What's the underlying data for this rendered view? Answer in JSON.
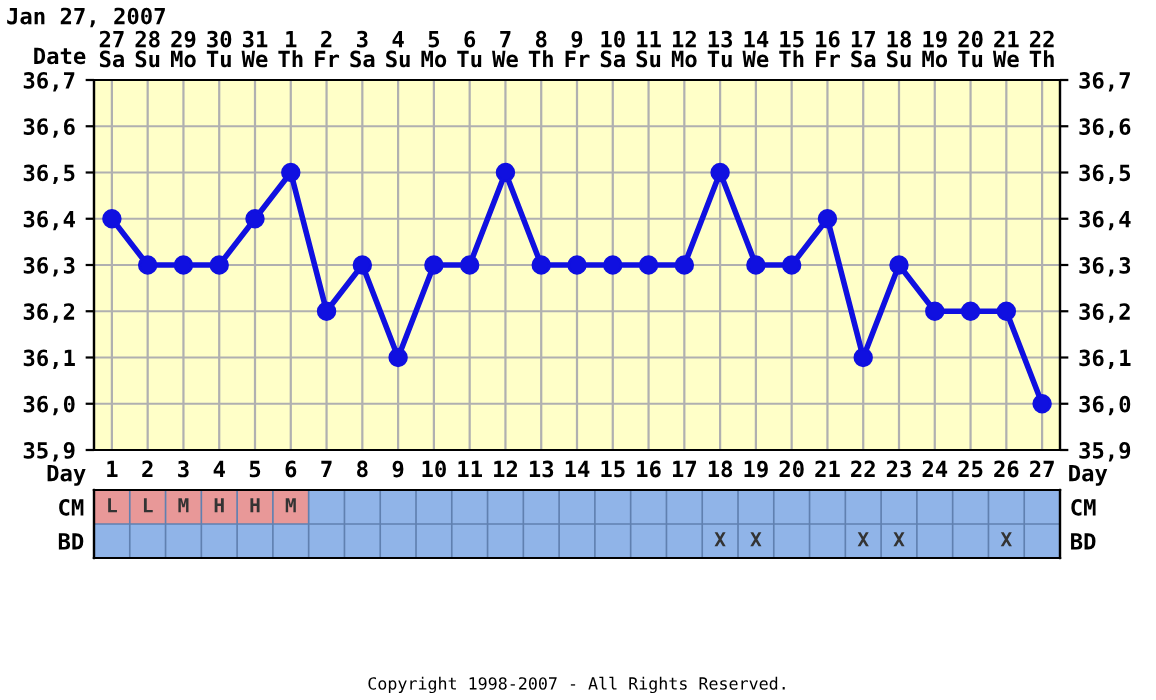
{
  "chart_data": [
    {
      "type": "line",
      "title": "Jan 27, 2007",
      "xlabel": "Date",
      "categories": [
        "27\nSa",
        "28\nSu",
        "29\nMo",
        "30\nTu",
        "31\nWe",
        "1\nTh",
        "2\nFr",
        "3\nSa",
        "4\nSu",
        "5\nMo",
        "6\nTu",
        "7\nWe",
        "8\nTh",
        "9\nFr",
        "10\nSa",
        "11\nSu",
        "12\nMo",
        "13\nTu",
        "14\nWe",
        "15\nTh",
        "16\nFr",
        "17\nSa",
        "18\nSu",
        "19\nMo",
        "20\nTu",
        "21\nWe",
        "22\nTh"
      ],
      "series": [
        {
          "color": "#1010e0",
          "values": [
            36.4,
            36.3,
            36.3,
            36.3,
            36.4,
            36.5,
            36.2,
            36.3,
            36.1,
            36.3,
            36.3,
            36.5,
            36.3,
            36.3,
            36.3,
            36.3,
            36.3,
            36.5,
            36.3,
            36.3,
            36.4,
            36.1,
            36.3,
            36.2,
            36.2,
            36.2,
            36.0
          ]
        }
      ],
      "marker": "circle",
      "line_style": "solid",
      "grid": true,
      "ylim": [
        35.9,
        36.7
      ],
      "yticks": [
        {
          "value": 35.9,
          "label": "35,9"
        },
        {
          "value": 36.0,
          "label": "36,0"
        },
        {
          "value": 36.1,
          "label": "36,1"
        },
        {
          "value": 36.2,
          "label": "36,2"
        },
        {
          "value": 36.3,
          "label": "36,3"
        },
        {
          "value": 36.4,
          "label": "36,4"
        },
        {
          "value": 36.5,
          "label": "36,5"
        },
        {
          "value": 36.6,
          "label": "36,6"
        },
        {
          "value": 36.7,
          "label": "36,7"
        }
      ],
      "y2lim": [
        35.9,
        36.7
      ],
      "y2ticks": [
        {
          "value": 35.9,
          "label": "35,9"
        },
        {
          "value": 36.0,
          "label": "36,0"
        },
        {
          "value": 36.1,
          "label": "36,1"
        },
        {
          "value": 36.2,
          "label": "36,2"
        },
        {
          "value": 36.3,
          "label": "36,3"
        },
        {
          "value": 36.4,
          "label": "36,4"
        },
        {
          "value": 36.5,
          "label": "36,5"
        },
        {
          "value": 36.6,
          "label": "36,6"
        },
        {
          "value": 36.7,
          "label": "36,7"
        }
      ]
    },
    {
      "type": "heatmap",
      "xlabel": "Day",
      "categories": [
        "1",
        "2",
        "3",
        "4",
        "5",
        "6",
        "7",
        "8",
        "9",
        "10",
        "11",
        "12",
        "13",
        "14",
        "15",
        "16",
        "17",
        "18",
        "19",
        "20",
        "21",
        "22",
        "23",
        "24",
        "25",
        "26",
        "27"
      ],
      "y_categories": [
        "CM",
        "BD"
      ],
      "y2_categories": [
        "CM",
        "BD"
      ],
      "cells": [
        [
          null,
          null,
          null,
          null,
          null,
          null,
          null,
          null,
          null,
          null,
          null,
          null,
          null,
          null,
          null,
          null,
          null,
          null,
          null,
          null,
          null,
          null,
          null,
          null,
          null,
          null,
          null
        ],
        [
          null,
          null,
          null,
          null,
          null,
          null,
          null,
          null,
          null,
          null,
          null,
          null,
          null,
          null,
          null,
          null,
          null,
          null,
          null,
          null,
          null,
          null,
          null,
          null,
          null,
          null,
          null
        ]
      ],
      "cell_labels": [
        [
          "L",
          "L",
          "M",
          "H",
          "H",
          "M",
          null,
          null,
          null,
          null,
          null,
          null,
          null,
          null,
          null,
          null,
          null,
          null,
          null,
          null,
          null,
          null,
          null,
          null,
          null,
          null,
          null
        ],
        [
          null,
          null,
          null,
          null,
          null,
          null,
          null,
          null,
          null,
          null,
          null,
          null,
          null,
          null,
          null,
          null,
          null,
          "X",
          "X",
          null,
          null,
          "X",
          "X",
          null,
          null,
          "X",
          null
        ]
      ],
      "annotations": [
        "Copyright 1998-2007 - All Rights Reserved."
      ]
    }
  ]
}
